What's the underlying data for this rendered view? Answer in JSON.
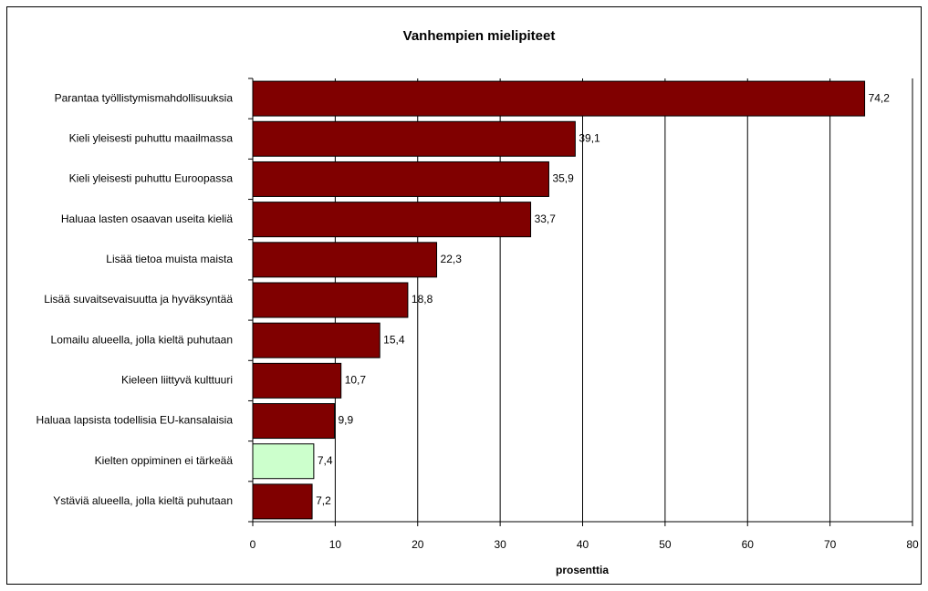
{
  "chart_data": {
    "type": "bar",
    "orientation": "horizontal",
    "title": "Vanhempien mielipiteet",
    "x_label": "prosenttia",
    "categories": [
      "Parantaa työllistymismahdollisuuksia",
      "Kieli yleisesti puhuttu maailmassa",
      "Kieli yleisesti puhuttu Euroopassa",
      "Haluaa lasten osaavan useita kieliä",
      "Lisää tietoa muista maista",
      "Lisää suvaitsevaisuutta ja hyväksyntää",
      "Lomailu alueella, jolla kieltä puhutaan",
      "Kieleen liittyvä kulttuuri",
      "Haluaa lapsista todellisia EU-kansalaisia",
      "Kielten oppiminen ei tärkeää",
      "Ystäviä alueella, jolla kieltä puhutaan"
    ],
    "values": [
      74.2,
      39.1,
      35.9,
      33.7,
      22.3,
      18.8,
      15.4,
      10.7,
      9.9,
      7.4,
      7.2
    ],
    "value_labels": [
      "74,2",
      "39,1",
      "35,9",
      "33,7",
      "22,3",
      "18,8",
      "15,4",
      "10,7",
      "9,9",
      "7,4",
      "7,2"
    ],
    "colors": [
      "#800000",
      "#800000",
      "#800000",
      "#800000",
      "#800000",
      "#800000",
      "#800000",
      "#800000",
      "#800000",
      "#ccffcc",
      "#800000"
    ],
    "xlim": [
      0,
      80
    ],
    "xticks": [
      0,
      10,
      20,
      30,
      40,
      50,
      60,
      70,
      80
    ],
    "grid": true
  }
}
